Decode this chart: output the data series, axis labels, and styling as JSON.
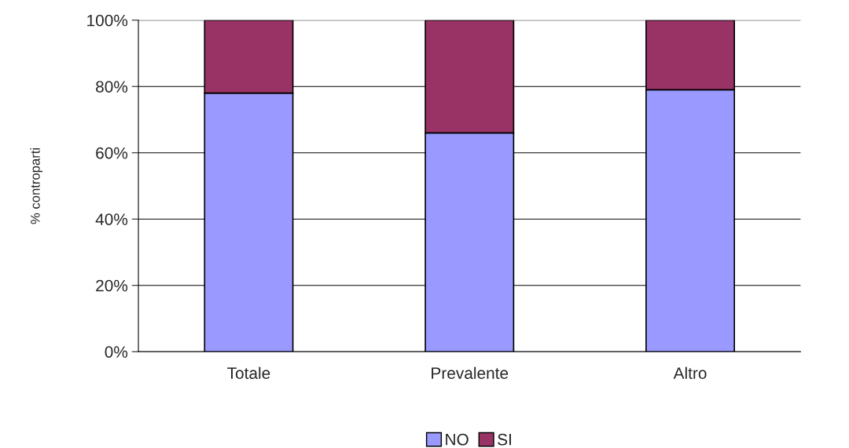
{
  "chart_data": {
    "type": "bar",
    "ylabel": "% controparti",
    "categories": [
      "Totale",
      "Prevalente",
      "Altro"
    ],
    "series": [
      {
        "name": "NO",
        "color": "#9999ff",
        "values": [
          78,
          66,
          79
        ]
      },
      {
        "name": "SI",
        "color": "#993366",
        "values": [
          22,
          34,
          21
        ]
      }
    ],
    "stacked": true,
    "ylim": [
      0,
      100
    ],
    "yticks": [
      {
        "value": 0,
        "label": "0%"
      },
      {
        "value": 20,
        "label": "20%"
      },
      {
        "value": 40,
        "label": "40%"
      },
      {
        "value": 60,
        "label": "60%"
      },
      {
        "value": 80,
        "label": "80%"
      },
      {
        "value": 100,
        "label": "100%"
      }
    ],
    "grid": "y",
    "legend": "bottom"
  }
}
